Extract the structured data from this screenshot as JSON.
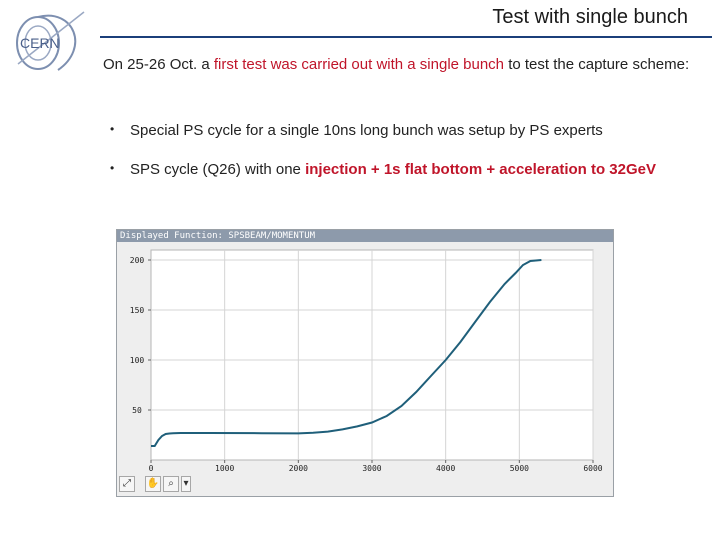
{
  "slide": {
    "title": "Test with single bunch",
    "logo_text": "CERN",
    "intro": {
      "part1": "On 25-26 Oct. a ",
      "highlight": "first test was carried out with a single bunch",
      "part2": " to test the capture scheme:"
    },
    "bullets": [
      {
        "symbol": "•",
        "text": "Special PS cycle for a single 10ns long bunch was setup by PS experts"
      },
      {
        "symbol": "•",
        "text_before": "SPS cycle (Q26) with one ",
        "highlight": "injection + 1s  flat bottom + acceleration to 32GeV"
      }
    ],
    "colors": {
      "accent": "#1b3f7a",
      "highlight": "#c0152a",
      "curve": "#1f5f7a"
    }
  },
  "panel": {
    "header": "Displayed Function: SPSBEAM/MOMENTUM",
    "toolbar": {
      "icons": [
        "zoom-fit-icon",
        "pan-hand-icon",
        "zoom-icon",
        "dropdown-arrow-icon"
      ]
    }
  },
  "chart_data": {
    "type": "line",
    "title": "",
    "xlabel": "",
    "ylabel": "",
    "xlim": [
      0,
      6000
    ],
    "ylim": [
      0,
      210
    ],
    "xticks": [
      0,
      1000,
      2000,
      3000,
      4000,
      5000,
      6000
    ],
    "xtick_labels": [
      "0",
      "1000",
      "2000",
      "3000",
      "4000",
      "5000",
      "6000"
    ],
    "yticks": [
      50,
      100,
      150,
      200
    ],
    "ytick_labels": [
      "50",
      "100",
      "150",
      "200"
    ],
    "grid": true,
    "series": [
      {
        "x": [
          0,
          50,
          100,
          150,
          200,
          250,
          300,
          400,
          800,
          1500,
          2000,
          2200,
          2400,
          2600,
          2800,
          3000,
          3200,
          3400,
          3600,
          3800,
          4000,
          4200,
          4400,
          4600,
          4800,
          4950,
          5050,
          5150,
          5300
        ],
        "y": [
          14,
          14,
          20,
          24,
          26,
          26.5,
          26.7,
          27,
          27,
          26.8,
          26.6,
          27.2,
          28.4,
          30.6,
          33.6,
          37.5,
          44,
          54,
          68,
          84,
          100,
          118,
          138,
          158,
          176,
          187,
          195,
          199,
          200
        ]
      }
    ]
  }
}
